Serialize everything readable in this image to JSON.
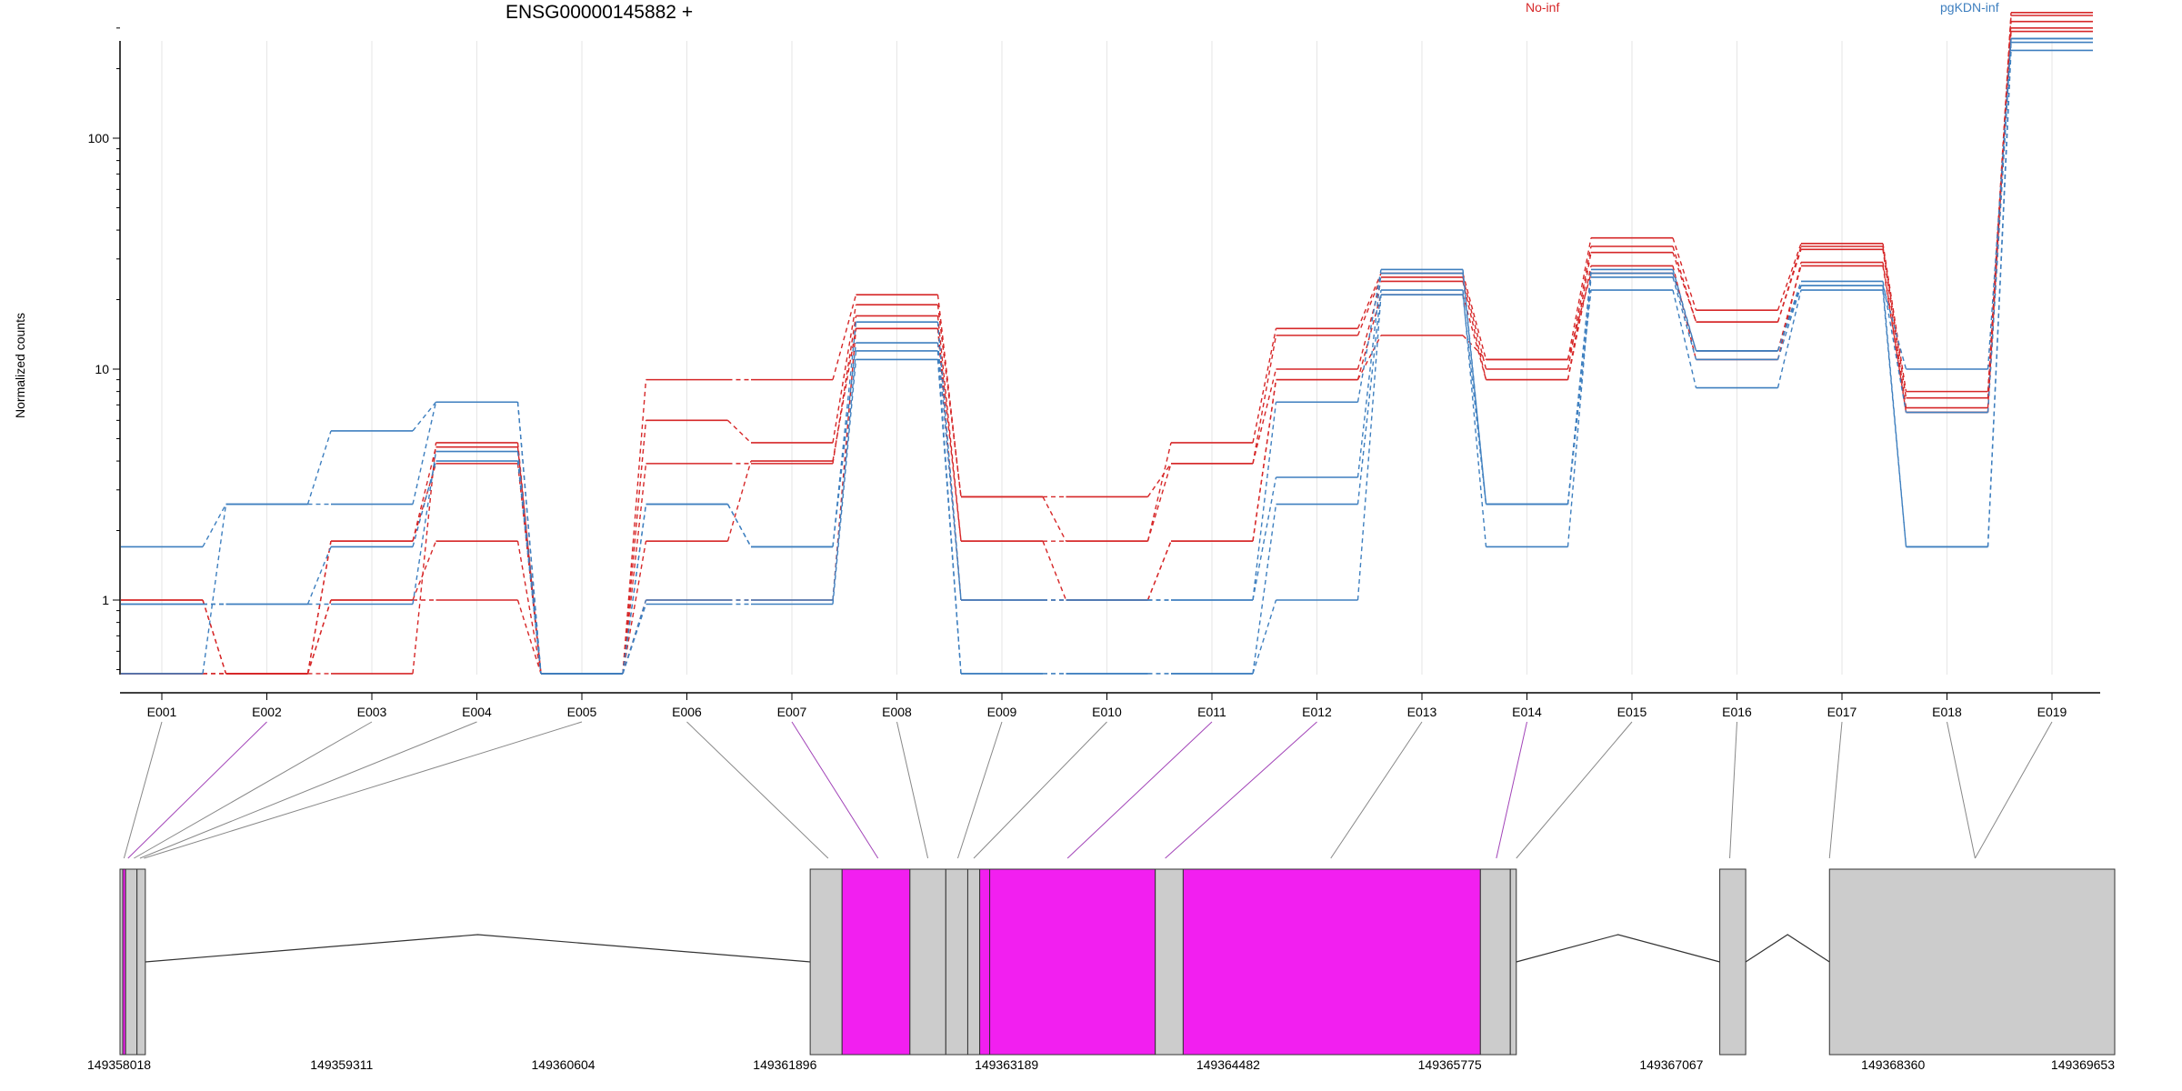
{
  "chart_data": {
    "type": "line",
    "title": "ENSG00000145882 +",
    "ylabel": "Normalized counts",
    "y_scale": "log",
    "ylim": [
      0.48,
      450
    ],
    "y_ticks": [
      {
        "v": 1,
        "label": "1"
      },
      {
        "v": 10,
        "label": "10"
      },
      {
        "v": 100,
        "label": "100"
      }
    ],
    "grid": "vertical lines at each exon",
    "legend": [
      {
        "name": "No-inf",
        "color": "#d62728"
      },
      {
        "name": "pgKDN-inf",
        "color": "#3e7fbf"
      }
    ],
    "categories": [
      "E001",
      "E002",
      "E003",
      "E004",
      "E005",
      "E006",
      "E007",
      "E008",
      "E009",
      "E010",
      "E011",
      "E012",
      "E013",
      "E014",
      "E015",
      "E016",
      "E017",
      "E018",
      "E019"
    ],
    "series": [
      {
        "group": "No-inf",
        "values": [
          1.0,
          0.48,
          1.0,
          1.8,
          0.48,
          9.0,
          9.0,
          21,
          2.8,
          1.8,
          4.8,
          15,
          26,
          11,
          37,
          18,
          35,
          8.0,
          350
        ]
      },
      {
        "group": "No-inf",
        "values": [
          1.0,
          0.48,
          1.0,
          1.0,
          0.48,
          6.0,
          4.8,
          19,
          2.8,
          2.8,
          3.9,
          14,
          25,
          10,
          34,
          16,
          34,
          7.5,
          340
        ]
      },
      {
        "group": "No-inf",
        "values": [
          0.48,
          0.48,
          1.8,
          3.9,
          0.48,
          3.9,
          3.9,
          17,
          1.8,
          1.8,
          3.9,
          10,
          24,
          9.0,
          32,
          16,
          33,
          6.8,
          320
        ]
      },
      {
        "group": "No-inf",
        "values": [
          0.48,
          0.48,
          1.8,
          4.6,
          0.48,
          1.8,
          4.0,
          15,
          1.8,
          1.0,
          1.8,
          9.0,
          21,
          9.0,
          28,
          11,
          29,
          6.5,
          300
        ]
      },
      {
        "group": "No-inf",
        "values": [
          0.48,
          0.48,
          0.48,
          4.8,
          0.48,
          1.0,
          1.0,
          15,
          1.0,
          1.0,
          1.8,
          9.0,
          14,
          11,
          26,
          12,
          28,
          6.5,
          290
        ]
      },
      {
        "group": "pgKDN-inf",
        "values": [
          1.7,
          2.6,
          2.6,
          7.2,
          0.48,
          2.6,
          1.7,
          16,
          1.0,
          1.0,
          1.0,
          7.2,
          27,
          2.6,
          27,
          12,
          23,
          10,
          270
        ]
      },
      {
        "group": "pgKDN-inf",
        "values": [
          0.48,
          2.6,
          5.4,
          7.2,
          0.48,
          2.6,
          1.7,
          13,
          1.0,
          1.0,
          1.0,
          3.4,
          26,
          2.6,
          26,
          12,
          24,
          6.5,
          270
        ]
      },
      {
        "group": "pgKDN-inf",
        "values": [
          0.96,
          0.96,
          0.96,
          4.4,
          0.48,
          1.0,
          1.0,
          12,
          0.48,
          0.48,
          0.48,
          2.6,
          22,
          1.7,
          25,
          11,
          23,
          1.7,
          260
        ]
      },
      {
        "group": "pgKDN-inf",
        "values": [
          0.96,
          0.96,
          1.7,
          4.0,
          0.48,
          0.96,
          0.96,
          11,
          0.48,
          0.48,
          0.48,
          1.0,
          21,
          2.6,
          22,
          8.3,
          22,
          1.7,
          240
        ]
      }
    ],
    "gene_model": {
      "coordinate_ticks": [
        "149358018",
        "149359311",
        "149360604",
        "149361896",
        "149363189",
        "149364482",
        "149365775",
        "149367067",
        "149368360",
        "149369653"
      ],
      "exon_blocks": [
        {
          "start": 0.0,
          "end": 0.0014,
          "color": "#cccccc"
        },
        {
          "start": 0.0014,
          "end": 0.0028,
          "color": "#f21ff0"
        },
        {
          "start": 0.0028,
          "end": 0.0085,
          "color": "#cccccc"
        },
        {
          "start": 0.0085,
          "end": 0.0127,
          "color": "#cccccc"
        },
        {
          "start": 0.346,
          "end": 0.362,
          "color": "#cccccc"
        },
        {
          "start": 0.362,
          "end": 0.396,
          "color": "#f21ff0"
        },
        {
          "start": 0.396,
          "end": 0.414,
          "color": "#cccccc"
        },
        {
          "start": 0.414,
          "end": 0.425,
          "color": "#cccccc"
        },
        {
          "start": 0.425,
          "end": 0.431,
          "color": "#cccccc"
        },
        {
          "start": 0.431,
          "end": 0.436,
          "color": "#f21ff0"
        },
        {
          "start": 0.436,
          "end": 0.519,
          "color": "#f21ff0"
        },
        {
          "start": 0.519,
          "end": 0.533,
          "color": "#cccccc"
        },
        {
          "start": 0.533,
          "end": 0.682,
          "color": "#f21ff0"
        },
        {
          "start": 0.682,
          "end": 0.697,
          "color": "#cccccc"
        },
        {
          "start": 0.697,
          "end": 0.7,
          "color": "#cccccc"
        },
        {
          "start": 0.802,
          "end": 0.815,
          "color": "#cccccc"
        },
        {
          "start": 0.857,
          "end": 1.0,
          "color": "#cccccc"
        }
      ],
      "exon_map_positions": [
        0.002,
        0.004,
        0.007,
        0.01,
        0.012,
        0.355,
        0.38,
        0.405,
        0.42,
        0.428,
        0.475,
        0.524,
        0.607,
        0.69,
        0.7,
        0.807,
        0.857,
        0.93,
        0.93
      ],
      "connector_colors": [
        "#888888",
        "#a244b8",
        "#888888",
        "#888888",
        "#888888",
        "#888888",
        "#a244b8",
        "#888888",
        "#888888",
        "#888888",
        "#a244b8",
        "#a244b8",
        "#888888",
        "#a244b8",
        "#888888",
        "#888888",
        "#888888",
        "#888888",
        "#888888"
      ]
    }
  }
}
